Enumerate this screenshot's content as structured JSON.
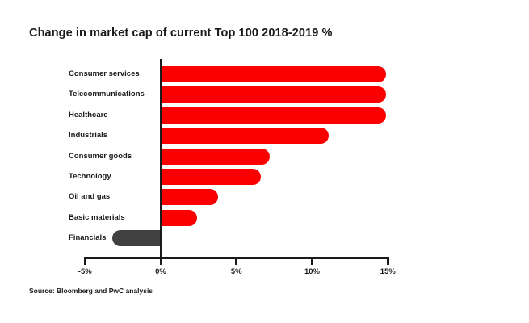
{
  "title": "Change in market cap of current Top 100 2018-2019 %",
  "source": "Source: Bloomberg and PwC analysis",
  "chart_data": {
    "type": "bar",
    "orientation": "horizontal",
    "title": "Change in market cap of current Top 100 2018-2019 %",
    "categories": [
      "Consumer services",
      "Telecommunications",
      "Healthcare",
      "Industrials",
      "Consumer goods",
      "Technology",
      "Oil and gas",
      "Basic materials",
      "Financials"
    ],
    "values": [
      14.9,
      14.9,
      14.9,
      11.1,
      7.2,
      6.6,
      3.8,
      2.4,
      -3.2
    ],
    "unit": "%",
    "xlabel": "",
    "ylabel": "",
    "xlim": [
      -5,
      15
    ],
    "x_ticks": [
      {
        "value": -5,
        "label": "-5%"
      },
      {
        "value": 0,
        "label": "0%"
      },
      {
        "value": 5,
        "label": "5%"
      },
      {
        "value": 10,
        "label": "10%"
      },
      {
        "value": 15,
        "label": "15%"
      }
    ],
    "grid": false,
    "legend": false,
    "bar_color": "#FA0000",
    "negative_bar_color": "#404040",
    "axis_color": "#1A1A1A",
    "source": "Source: Bloomberg and PwC analysis"
  }
}
